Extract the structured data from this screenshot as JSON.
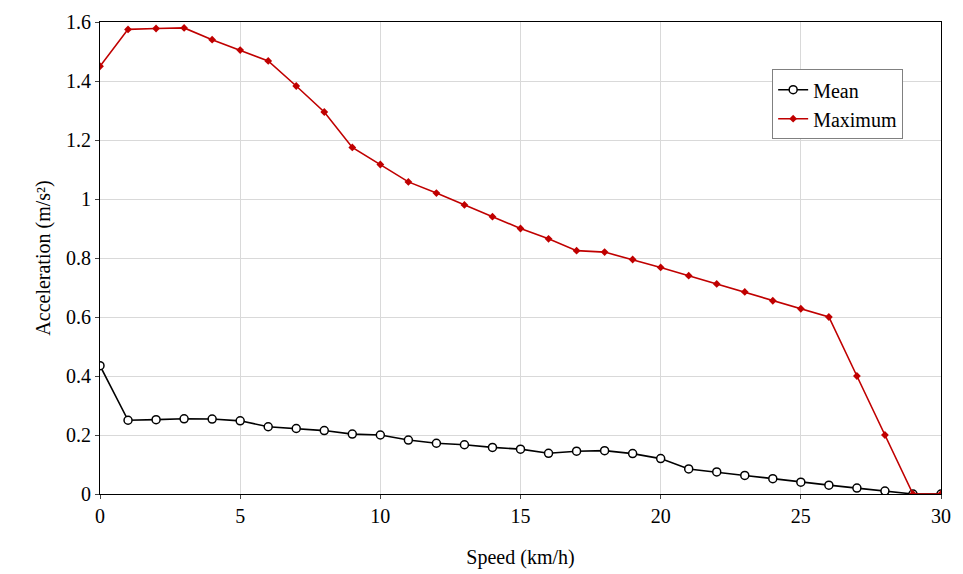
{
  "chart_data": {
    "type": "line",
    "x_label": "Speed (km/h)",
    "y_label": "Acceleration (m/s²)",
    "x": [
      0,
      1,
      2,
      3,
      4,
      5,
      6,
      7,
      8,
      9,
      10,
      11,
      12,
      13,
      14,
      15,
      16,
      17,
      18,
      19,
      20,
      21,
      22,
      23,
      24,
      25,
      26,
      27,
      28,
      29,
      30
    ],
    "series": [
      {
        "name": "Mean",
        "color": "#000000",
        "marker": "circle-open",
        "line_style": "solid",
        "values": [
          0.435,
          0.25,
          0.252,
          0.255,
          0.254,
          0.248,
          0.228,
          0.222,
          0.215,
          0.203,
          0.2,
          0.183,
          0.172,
          0.167,
          0.158,
          0.152,
          0.138,
          0.145,
          0.147,
          0.137,
          0.12,
          0.085,
          0.075,
          0.063,
          0.052,
          0.04,
          0.03,
          0.02,
          0.01,
          0,
          0
        ]
      },
      {
        "name": "Maximum",
        "color": "#c00000",
        "marker": "diamond",
        "line_style": "solid",
        "values": [
          1.45,
          1.575,
          1.578,
          1.58,
          1.54,
          1.505,
          1.468,
          1.383,
          1.295,
          1.175,
          1.117,
          1.058,
          1.02,
          0.98,
          0.94,
          0.9,
          0.865,
          0.825,
          0.82,
          0.795,
          0.768,
          0.74,
          0.712,
          0.685,
          0.655,
          0.628,
          0.6,
          0.4,
          0.2,
          0,
          0
        ]
      }
    ],
    "xlim": [
      0,
      30
    ],
    "xticks": [
      0,
      5,
      10,
      15,
      20,
      25,
      30
    ],
    "ylim": [
      0,
      1.6
    ],
    "yticks": [
      0,
      0.2,
      0.4,
      0.6,
      0.8,
      1,
      1.2,
      1.4,
      1.6
    ],
    "grid": true,
    "legend": "upper right"
  }
}
